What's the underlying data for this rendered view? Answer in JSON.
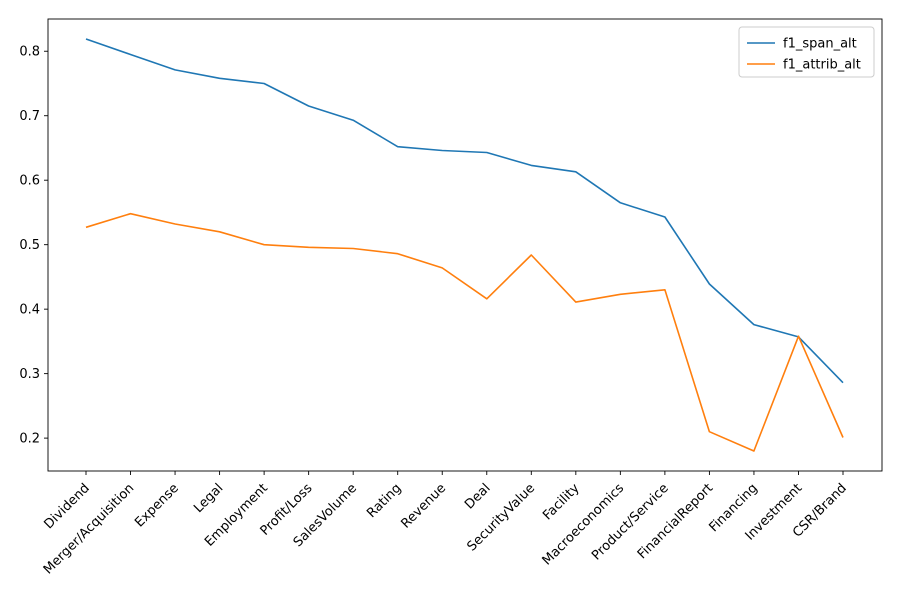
{
  "chart_data": {
    "type": "line",
    "categories": [
      "Dividend",
      "Merger/Acquisition",
      "Expense",
      "Legal",
      "Employment",
      "Profit/Loss",
      "SalesVolume",
      "Rating",
      "Revenue",
      "Deal",
      "SecurityValue",
      "Facility",
      "Macroeconomics",
      "Product/Service",
      "FinancialReport",
      "Financing",
      "Investment",
      "CSR/Brand"
    ],
    "series": [
      {
        "name": "f1_span_alt",
        "color": "#1f77b4",
        "values": [
          0.819,
          0.795,
          0.771,
          0.758,
          0.75,
          0.715,
          0.693,
          0.652,
          0.646,
          0.643,
          0.623,
          0.613,
          0.565,
          0.543,
          0.439,
          0.376,
          0.357,
          0.286
        ]
      },
      {
        "name": "f1_attrib_alt",
        "color": "#ff7f0e",
        "values": [
          0.527,
          0.548,
          0.532,
          0.52,
          0.5,
          0.496,
          0.494,
          0.486,
          0.464,
          0.416,
          0.484,
          0.411,
          0.423,
          0.43,
          0.21,
          0.18,
          0.358,
          0.201
        ]
      }
    ],
    "y_ticks": [
      "0.2",
      "0.3",
      "0.4",
      "0.5",
      "0.6",
      "0.7",
      "0.8"
    ],
    "ylim": [
      0.149,
      0.85
    ],
    "title": "",
    "xlabel": "",
    "ylabel": "",
    "grid": false,
    "legend_position": "upper right"
  }
}
